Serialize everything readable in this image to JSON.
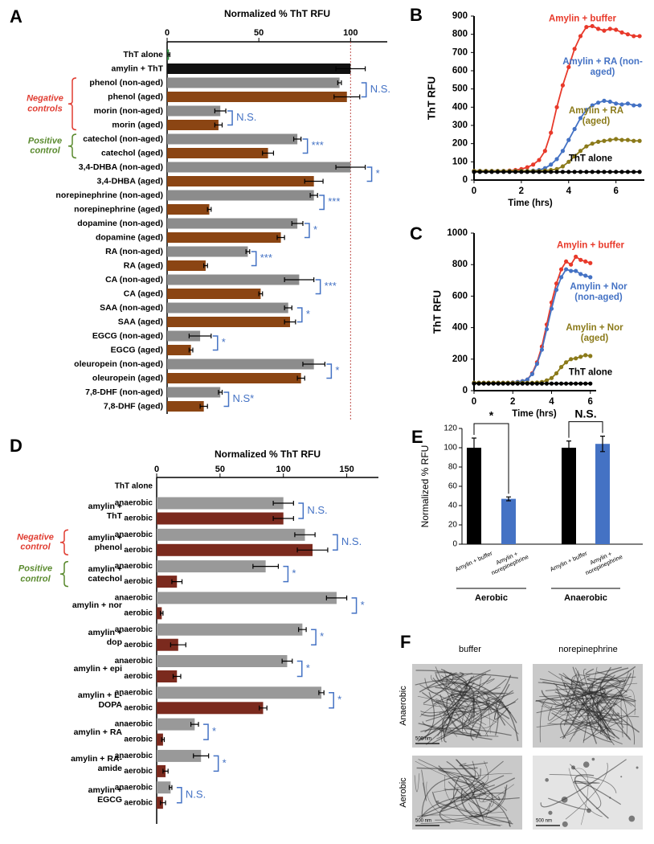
{
  "chart_data": [
    {
      "panel": "A",
      "type": "hbar",
      "title": "Normalized % ThT RFU",
      "categories": [
        "ThT alone",
        "amylin + ThT",
        "phenol (non-aged)",
        "phenol (aged)",
        "morin (non-aged)",
        "morin (aged)",
        "catechol (non-aged)",
        "catechol (aged)",
        "3,4-DHBA (non-aged)",
        "3,4-DHBA (aged)",
        "norepinephrine (non-aged)",
        "norepinephrine (aged)",
        "dopamine (non-aged)",
        "dopamine (aged)",
        "RA (non-aged)",
        "RA (aged)",
        "CA (non-aged)",
        "CA (aged)",
        "SAA (non-aged)",
        "SAA (aged)",
        "EGCG (non-aged)",
        "EGCG (aged)",
        "oleuropein (non-aged)",
        "oleuropein (aged)",
        "7,8-DHF (non-aged)",
        "7,8-DHF (aged)"
      ],
      "values": [
        1,
        100,
        94,
        98,
        29,
        28,
        71,
        55,
        100,
        80,
        80,
        23,
        71,
        62,
        44,
        21,
        72,
        51,
        66,
        67,
        18,
        13,
        80,
        73,
        29,
        20
      ],
      "errors": [
        0.5,
        8,
        1,
        7,
        3,
        2,
        2,
        3,
        8,
        5,
        2,
        1,
        3,
        2,
        1,
        1,
        8,
        1,
        2,
        3,
        6,
        1,
        6,
        2,
        1,
        2
      ],
      "colors": [
        "#2e8b3e",
        "#111111",
        "#8c8c8c",
        "#8b4513",
        "#8c8c8c",
        "#8b4513",
        "#8c8c8c",
        "#8b4513",
        "#8c8c8c",
        "#8b4513",
        "#8c8c8c",
        "#8b4513",
        "#8c8c8c",
        "#8b4513",
        "#8c8c8c",
        "#8b4513",
        "#8c8c8c",
        "#8b4513",
        "#8c8c8c",
        "#8b4513",
        "#8c8c8c",
        "#8b4513",
        "#8c8c8c",
        "#8b4513",
        "#8c8c8c",
        "#8b4513"
      ],
      "xlim": [
        0,
        120
      ],
      "xticks": [
        0,
        50,
        100
      ],
      "reference_line": 100,
      "reference_color": "#c0504d",
      "annotations": [
        "N.S.",
        "N.S.",
        "***",
        "*",
        "***",
        "*",
        "***",
        "***",
        "*",
        "*",
        "*",
        "N.S*"
      ],
      "annotation_color": "#4472c4",
      "side_labels": [
        {
          "label": "Negative controls",
          "color": "#e03c31"
        },
        {
          "label": "Positive control",
          "color": "#5a8a2e"
        }
      ]
    },
    {
      "panel": "B",
      "type": "line",
      "ylabel": "ThT RFU",
      "xlabel": "Time (hrs)",
      "x": [
        0,
        0.25,
        0.5,
        0.75,
        1,
        1.25,
        1.5,
        1.75,
        2,
        2.25,
        2.5,
        2.75,
        3,
        3.25,
        3.5,
        3.75,
        4,
        4.25,
        4.5,
        4.75,
        5,
        5.25,
        5.5,
        5.75,
        6,
        6.25,
        6.5,
        6.75,
        7
      ],
      "series": [
        {
          "name": "Amylin + buffer",
          "color": "#e8392a",
          "values": [
            50,
            50,
            50,
            50,
            50,
            50,
            52,
            55,
            60,
            70,
            85,
            110,
            160,
            260,
            400,
            520,
            620,
            720,
            790,
            840,
            845,
            830,
            820,
            830,
            825,
            810,
            800,
            790,
            790
          ]
        },
        {
          "name": "Amylin + RA (non-aged)",
          "color": "#4472c4",
          "values": [
            50,
            50,
            50,
            50,
            50,
            50,
            50,
            50,
            50,
            50,
            52,
            55,
            65,
            85,
            115,
            160,
            220,
            280,
            340,
            385,
            410,
            425,
            435,
            430,
            420,
            415,
            420,
            410,
            410
          ]
        },
        {
          "name": "Amylin + RA (aged)",
          "color": "#8b7a1a",
          "values": [
            50,
            50,
            50,
            50,
            50,
            50,
            50,
            50,
            50,
            50,
            50,
            50,
            52,
            55,
            60,
            75,
            100,
            130,
            160,
            185,
            200,
            210,
            215,
            220,
            225,
            220,
            220,
            215,
            215
          ]
        },
        {
          "name": "ThT alone",
          "color": "#000000",
          "values": [
            45,
            45,
            45,
            45,
            45,
            45,
            45,
            45,
            45,
            45,
            45,
            45,
            45,
            45,
            45,
            45,
            45,
            45,
            45,
            45,
            45,
            45,
            45,
            45,
            45,
            45,
            45,
            45,
            45
          ]
        }
      ],
      "xlim": [
        0,
        7.2
      ],
      "xticks": [
        0,
        2,
        4,
        6
      ],
      "ylim": [
        0,
        900
      ],
      "yticks": [
        0,
        100,
        200,
        300,
        400,
        500,
        600,
        700,
        800,
        900
      ]
    },
    {
      "panel": "C",
      "type": "line",
      "ylabel": "ThT RFU",
      "xlabel": "Time (hrs)",
      "x": [
        0,
        0.25,
        0.5,
        0.75,
        1,
        1.25,
        1.5,
        1.75,
        2,
        2.25,
        2.5,
        2.75,
        3,
        3.25,
        3.5,
        3.75,
        4,
        4.25,
        4.5,
        4.75,
        5,
        5.25,
        5.5,
        5.75,
        6
      ],
      "series": [
        {
          "name": "Amylin + buffer",
          "color": "#e8392a",
          "values": [
            50,
            50,
            50,
            50,
            50,
            50,
            50,
            50,
            52,
            55,
            60,
            70,
            110,
            180,
            280,
            420,
            560,
            680,
            770,
            820,
            800,
            850,
            830,
            820,
            810
          ]
        },
        {
          "name": "Amylin + Nor (non-aged)",
          "color": "#4472c4",
          "values": [
            50,
            50,
            50,
            50,
            50,
            50,
            50,
            50,
            52,
            55,
            60,
            70,
            105,
            170,
            260,
            390,
            520,
            640,
            720,
            770,
            760,
            760,
            740,
            730,
            720
          ]
        },
        {
          "name": "Amylin + Nor (aged)",
          "color": "#8b7a1a",
          "values": [
            50,
            50,
            50,
            50,
            50,
            50,
            50,
            50,
            50,
            50,
            50,
            50,
            50,
            52,
            55,
            65,
            80,
            110,
            150,
            180,
            200,
            205,
            215,
            225,
            220
          ]
        },
        {
          "name": "ThT alone",
          "color": "#000000",
          "values": [
            45,
            45,
            45,
            45,
            45,
            45,
            45,
            45,
            45,
            45,
            45,
            45,
            45,
            45,
            45,
            45,
            45,
            45,
            45,
            45,
            45,
            45,
            45,
            45,
            45
          ]
        }
      ],
      "xlim": [
        0,
        6.3
      ],
      "xticks": [
        0,
        2,
        4,
        6
      ],
      "ylim": [
        0,
        1000
      ],
      "yticks": [
        0,
        200,
        400,
        600,
        800,
        1000
      ]
    },
    {
      "panel": "D",
      "type": "hbar",
      "title": "Normalized % ThT RFU",
      "categories": [
        "ThT alone",
        "amylin + ThT",
        "amylin + phenol",
        "amylin + catechol",
        "amylin + nor",
        "amylin + dop",
        "amylin + epi",
        "amylin + L-DOPA",
        "amylin + RA",
        "amylin + RA-amide",
        "amylin + EGCG"
      ],
      "series": [
        {
          "name": "anaerobic",
          "color": "#999999",
          "values": [
            null,
            100,
            117,
            86,
            142,
            115,
            103,
            130,
            30,
            35,
            11
          ],
          "errors": [
            null,
            8,
            8,
            10,
            8,
            3,
            4,
            2,
            3,
            6,
            1
          ]
        },
        {
          "name": "aerobic",
          "color": "#7b2a1e",
          "values": [
            null,
            100,
            123,
            16,
            4,
            17,
            16,
            84,
            5,
            7,
            5
          ],
          "errors": [
            null,
            8,
            12,
            4,
            1,
            6,
            3,
            3,
            1,
            2,
            2
          ]
        }
      ],
      "xlim": [
        0,
        175
      ],
      "xticks": [
        0,
        50,
        100,
        150
      ],
      "annotations": [
        "N.S.",
        "N.S.",
        "*",
        "*",
        "*",
        "*",
        "*",
        "*",
        "*",
        "N.S."
      ],
      "annotation_color": "#4472c4",
      "side_labels": [
        {
          "label": "Negative control",
          "color": "#e03c31"
        },
        {
          "label": "Positive control",
          "color": "#5a8a2e"
        }
      ]
    },
    {
      "panel": "E",
      "type": "bar",
      "ylabel": "Normalized % RFU",
      "categories": [
        "Amylin + buffer",
        "Amylin + norepinephrine",
        "Amylin + buffer",
        "Amylin + norepinephrine"
      ],
      "values": [
        100,
        47,
        100,
        104
      ],
      "errors": [
        10,
        2,
        7,
        8
      ],
      "colors": [
        "#000000",
        "#4472c4",
        "#000000",
        "#4472c4"
      ],
      "groups": [
        "Aerobic",
        "Anaerobic"
      ],
      "annotations": [
        "*",
        "N.S."
      ],
      "ylim": [
        0,
        120
      ],
      "yticks": [
        0,
        20,
        40,
        60,
        80,
        100,
        120
      ]
    }
  ],
  "micrographs": {
    "panel": "F",
    "columns": [
      "buffer",
      "norepinephrine"
    ],
    "rows": [
      "Anaerobic",
      "Aerobic"
    ],
    "scale_bar": "500 nm"
  }
}
